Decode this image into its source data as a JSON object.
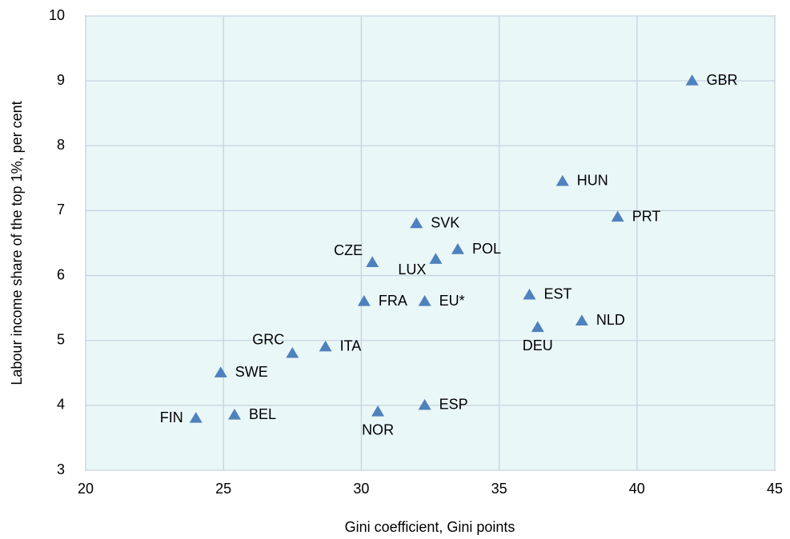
{
  "chart_data": {
    "type": "scatter",
    "x_label": "Gini coefficient, Gini points",
    "y_label": "Labour income share of the top 1%, per cent",
    "labels": [
      "GBR",
      "HUN",
      "PRT",
      "SVK",
      "POL",
      "CZE",
      "LUX",
      "EST",
      "FRA",
      "EU*",
      "NLD",
      "DEU",
      "GRC",
      "ITA",
      "SWE",
      "ESP",
      "NOR",
      "BEL",
      "FIN"
    ],
    "x": [
      42.0,
      37.3,
      39.3,
      32.0,
      33.5,
      30.4,
      32.7,
      36.1,
      30.1,
      32.3,
      38.0,
      36.4,
      27.5,
      28.7,
      24.9,
      32.3,
      30.6,
      25.4,
      24.0
    ],
    "values": [
      9.0,
      7.45,
      6.9,
      6.8,
      6.4,
      6.2,
      6.25,
      5.7,
      5.6,
      5.6,
      5.3,
      5.2,
      4.8,
      4.9,
      4.5,
      4.0,
      3.9,
      3.85,
      3.8
    ],
    "color": "#4f81bd",
    "xlim": [
      20,
      45
    ],
    "xticks": [
      20,
      25,
      30,
      35,
      40,
      45
    ],
    "ylim": [
      3,
      10
    ],
    "yticks": [
      3,
      4,
      5,
      6,
      7,
      8,
      9,
      10
    ],
    "grid": true
  }
}
